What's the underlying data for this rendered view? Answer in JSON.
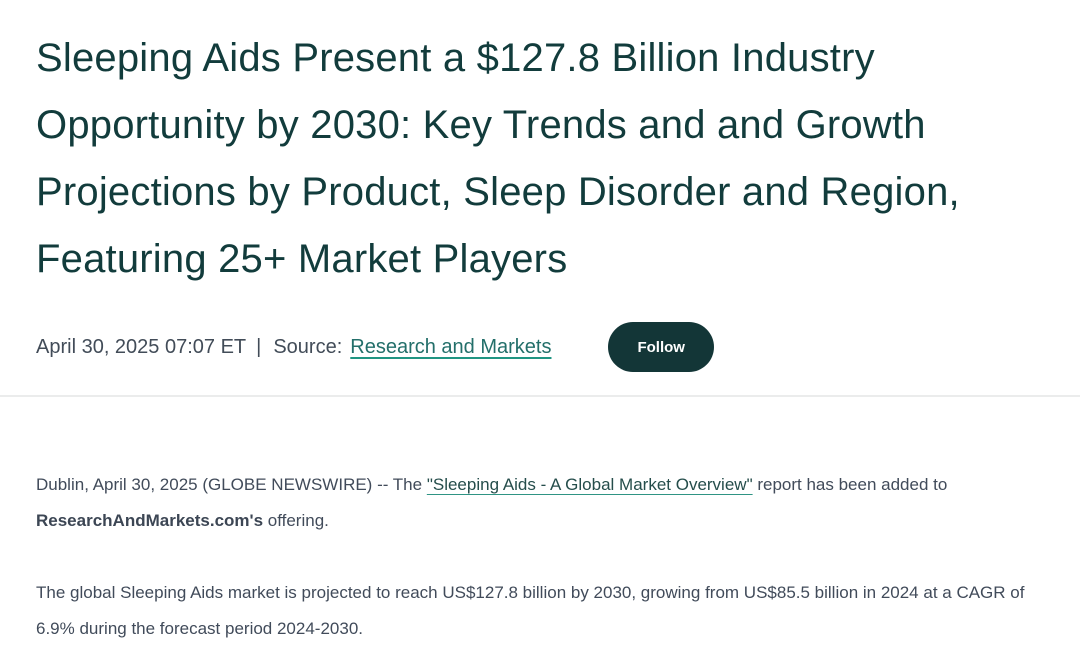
{
  "headline": "Sleeping Aids Present a $127.8 Billion Industry Opportunity by 2030: Key Trends and and Growth Projections by Product, Sleep Disorder and Region, Featuring 25+ Market Players",
  "meta": {
    "datetime": "April 30, 2025 07:07 ET",
    "separator": "|",
    "source_label": "Source:",
    "source_link": "Research and Markets",
    "follow_label": "Follow"
  },
  "body": {
    "p1_before_link": "Dublin, April 30, 2025 (GLOBE NEWSWIRE) -- The ",
    "p1_link": "\"Sleeping Aids - A Global Market Overview\"",
    "p1_after_link": " report has been added to ",
    "p1_bold": "ResearchAndMarkets.com's",
    "p1_after_bold": " offering.",
    "p2": "The global Sleeping Aids market is projected to reach US$127.8 billion by 2030, growing from US$85.5 billion in 2024 at a CAGR of 6.9% during the forecast period 2024-2030."
  },
  "colors": {
    "headline_text": "#123c3c",
    "meta_text": "#424c58",
    "link_text": "#236f6a",
    "link_underline": "#1f9582",
    "body_text": "#414b5a",
    "follow_button_bg": "#133637",
    "follow_button_text": "#ffffff",
    "divider": "#ebecec"
  }
}
